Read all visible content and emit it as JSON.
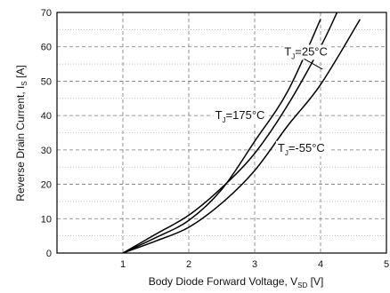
{
  "chart_data": {
    "type": "line",
    "title": "",
    "xlabel": {
      "main": "Body Diode Forward Voltage, V",
      "sub": "SD",
      "unit": " [V]"
    },
    "ylabel": {
      "main": "Reverse Drain Current, I",
      "sub": "S",
      "unit": " [A]"
    },
    "xlim": [
      0,
      5
    ],
    "ylim": [
      0,
      70
    ],
    "xticks": [
      1,
      2,
      3,
      4,
      5
    ],
    "yticks": [
      0,
      10,
      20,
      30,
      40,
      50,
      60,
      70
    ],
    "grid": {
      "major": "dashed",
      "minor_y": "dotted"
    },
    "series": [
      {
        "name": "TJ=25°C",
        "x": [
          1.0,
          1.5,
          2.0,
          2.5,
          3.0,
          3.5,
          4.0
        ],
        "y": [
          0,
          4.5,
          9.5,
          18.5,
          32.5,
          47,
          68
        ]
      },
      {
        "name": "TJ=175°C",
        "x": [
          1.0,
          1.5,
          2.0,
          2.5,
          3.0,
          3.5,
          4.0,
          4.25
        ],
        "y": [
          0,
          5.5,
          11,
          19,
          29,
          43,
          60,
          70
        ]
      },
      {
        "name": "TJ=-55°C",
        "x": [
          1.0,
          1.5,
          2.0,
          2.5,
          3.0,
          3.5,
          4.0,
          4.6
        ],
        "y": [
          0,
          3.5,
          7.5,
          14.5,
          24,
          37,
          49,
          68
        ]
      }
    ],
    "annotations": [
      {
        "series": 0,
        "main": "T",
        "sub": "J",
        "rest": "=25°C"
      },
      {
        "series": 1,
        "main": "T",
        "sub": "J",
        "rest": "=175°C"
      },
      {
        "series": 2,
        "main": "T",
        "sub": "J",
        "rest": "=-55°C"
      }
    ]
  }
}
